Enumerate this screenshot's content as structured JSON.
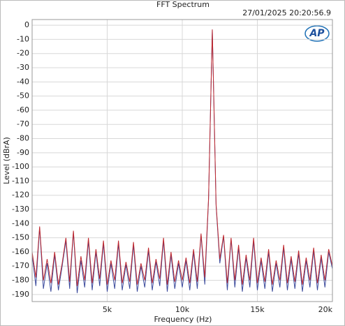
{
  "chart_data": {
    "type": "line",
    "title": "FFT Spectrum",
    "timestamp": "27/01/2025 20:20:56.9",
    "logo": "AP",
    "x_label": "Frequency (Hz)",
    "y_label": "Level (dBrA)",
    "xlim": [
      0,
      20000
    ],
    "ylim": [
      -195,
      4
    ],
    "xticks": [
      {
        "value": 5000,
        "label": "5k"
      },
      {
        "value": 10000,
        "label": "10k"
      },
      {
        "value": 15000,
        "label": "15k"
      },
      {
        "value": 20000,
        "label": "20k"
      }
    ],
    "yticks": [
      0,
      -10,
      -20,
      -30,
      -40,
      -50,
      -60,
      -70,
      -80,
      -90,
      -100,
      -110,
      -120,
      -130,
      -140,
      -150,
      -160,
      -170,
      -180,
      -190
    ],
    "grid": true,
    "x": [
      0,
      250,
      500,
      750,
      1000,
      1250,
      1500,
      1750,
      2000,
      2250,
      2500,
      2750,
      3000,
      3250,
      3500,
      3750,
      4000,
      4250,
      4500,
      4750,
      5000,
      5250,
      5500,
      5750,
      6000,
      6250,
      6500,
      6750,
      7000,
      7250,
      7500,
      7750,
      8000,
      8250,
      8500,
      8750,
      9000,
      9250,
      9500,
      9750,
      10000,
      10250,
      10500,
      10750,
      11000,
      11250,
      11500,
      11750,
      12000,
      12250,
      12500,
      12750,
      13000,
      13250,
      13500,
      13750,
      14000,
      14250,
      14500,
      14750,
      15000,
      15250,
      15500,
      15750,
      16000,
      16250,
      16500,
      16750,
      17000,
      17250,
      17500,
      17750,
      18000,
      18250,
      18500,
      18750,
      19000,
      19250,
      19500,
      19750,
      20000
    ],
    "series": [
      {
        "color": "#3b4a9c",
        "values": [
          -162,
          -184,
          -143,
          -186,
          -168,
          -188,
          -162,
          -187,
          -170,
          -152,
          -186,
          -146,
          -189,
          -166,
          -185,
          -152,
          -187,
          -160,
          -184,
          -154,
          -188,
          -168,
          -186,
          -154,
          -187,
          -169,
          -186,
          -155,
          -188,
          -170,
          -185,
          -159,
          -187,
          -167,
          -184,
          -152,
          -188,
          -162,
          -186,
          -168,
          -185,
          -166,
          -187,
          -160,
          -186,
          -148,
          -183,
          -123,
          -3,
          -127,
          -168,
          -149,
          -187,
          -151,
          -185,
          -157,
          -188,
          -164,
          -185,
          -152,
          -187,
          -166,
          -186,
          -160,
          -188,
          -168,
          -185,
          -157,
          -187,
          -165,
          -186,
          -161,
          -188,
          -166,
          -185,
          -159,
          -187,
          -164,
          -185,
          -160,
          -172
        ]
      },
      {
        "color": "#c0282e",
        "values": [
          -160,
          -178,
          -142,
          -180,
          -165,
          -182,
          -160,
          -183,
          -168,
          -150,
          -181,
          -145,
          -184,
          -163,
          -180,
          -150,
          -182,
          -158,
          -179,
          -152,
          -183,
          -166,
          -180,
          -152,
          -182,
          -167,
          -181,
          -153,
          -183,
          -168,
          -180,
          -157,
          -182,
          -165,
          -179,
          -150,
          -183,
          -160,
          -181,
          -166,
          -180,
          -164,
          -182,
          -158,
          -181,
          -147,
          -178,
          -122,
          -3,
          -126,
          -165,
          -148,
          -182,
          -150,
          -180,
          -155,
          -183,
          -162,
          -180,
          -150,
          -182,
          -164,
          -181,
          -158,
          -183,
          -166,
          -180,
          -155,
          -182,
          -163,
          -181,
          -159,
          -183,
          -164,
          -180,
          -157,
          -182,
          -162,
          -180,
          -158,
          -170
        ]
      }
    ]
  }
}
